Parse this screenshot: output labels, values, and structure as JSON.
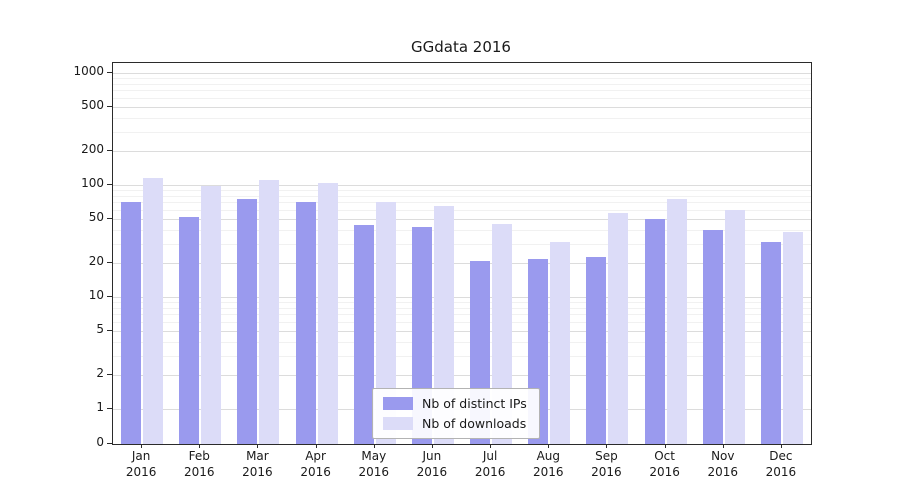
{
  "chart_data": {
    "type": "bar",
    "title": "GGdata 2016",
    "categories": [
      "Jan",
      "Feb",
      "Mar",
      "Apr",
      "May",
      "Jun",
      "Jul",
      "Aug",
      "Sep",
      "Oct",
      "Nov",
      "Dec"
    ],
    "x_year_label": "2016",
    "series": [
      {
        "name": "Nb of distinct IPs",
        "color": "#9a9aee",
        "values": [
          70,
          52,
          75,
          70,
          44,
          42,
          21,
          22,
          23,
          50,
          40,
          31
        ]
      },
      {
        "name": "Nb of downloads",
        "color": "#dcdcf8",
        "values": [
          115,
          98,
          112,
          105,
          70,
          65,
          45,
          31,
          56,
          75,
          60,
          38
        ]
      }
    ],
    "yticks": [
      0,
      1,
      2,
      5,
      10,
      20,
      50,
      100,
      200,
      500,
      1000
    ],
    "yscale": "symlog",
    "ylim": [
      0,
      1200
    ],
    "xlabel": "",
    "ylabel": "",
    "grid": true,
    "legend_position": "lower center"
  },
  "colors": {
    "grid_major": "#dcdcdc",
    "grid_minor": "#f1f1f1",
    "spine": "#2b2b2b",
    "text": "#1a1a1a",
    "legend_border": "#b3b3b3",
    "background": "#ffffff"
  }
}
